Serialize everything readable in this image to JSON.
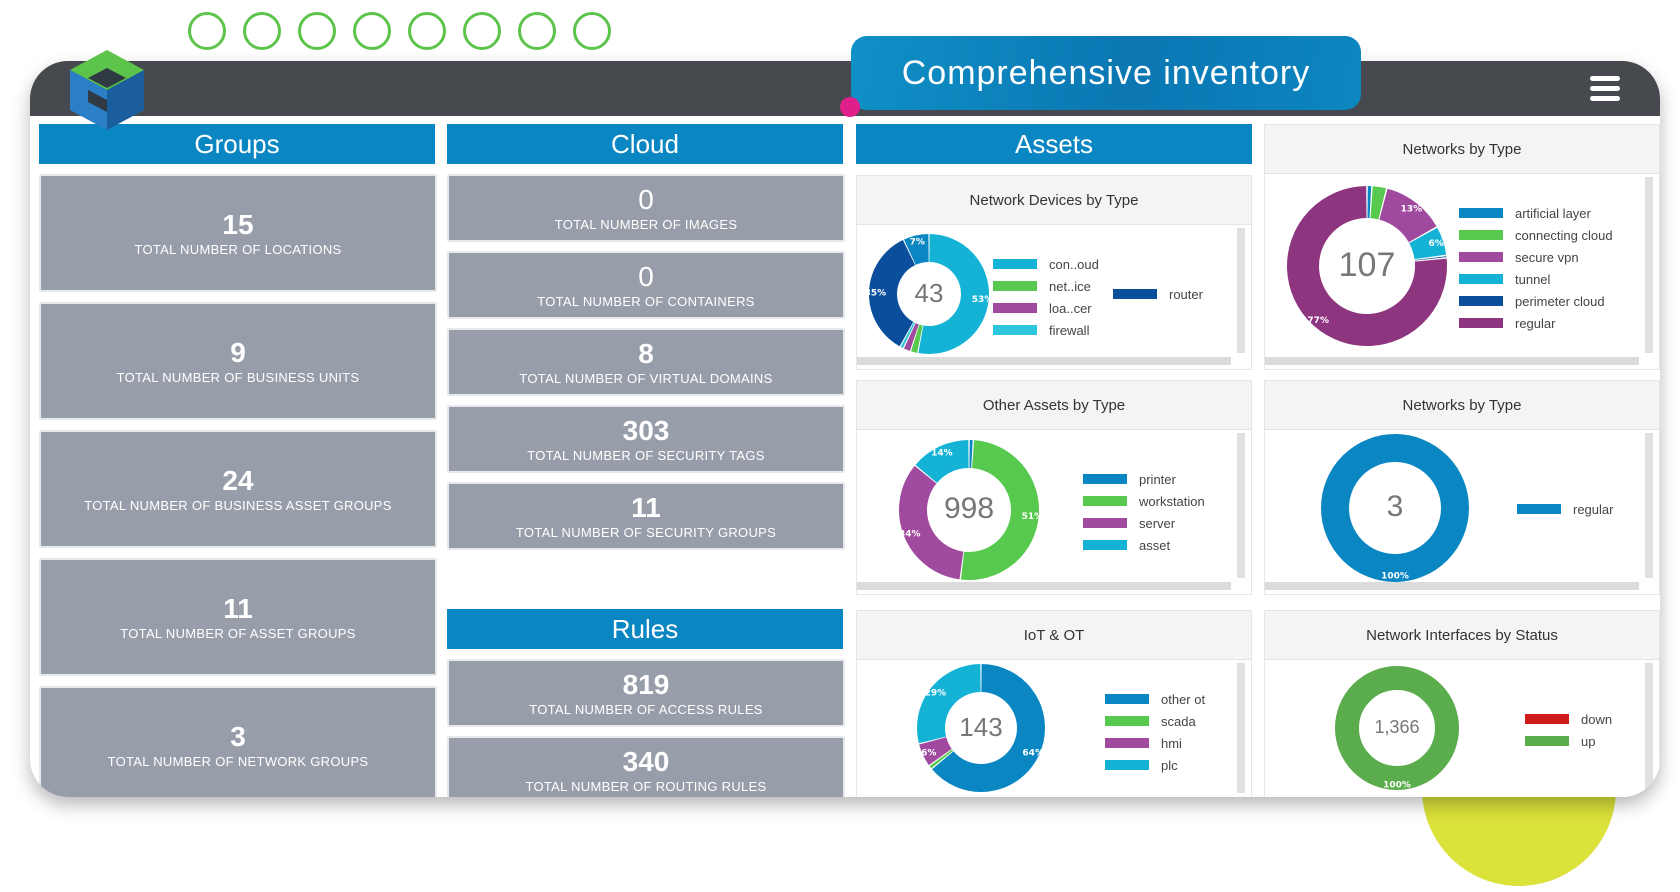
{
  "hero": {
    "title": "Comprehensive inventory"
  },
  "icons": {
    "menu": "hamburger-menu-icon",
    "logo": "cube-logo-icon"
  },
  "colors": {
    "header_blue": "#0a86c2",
    "tile_gray": "#989ea9",
    "topbar": "#464a4e",
    "accent_green": "#5cc44a",
    "accent_yellow": "#dbe23a",
    "accent_pink": "#e0208a"
  },
  "columns": {
    "groups": "Groups",
    "cloud": "Cloud",
    "assets": "Assets",
    "rules": "Rules"
  },
  "groups": [
    {
      "value": "15",
      "label": "TOTAL NUMBER OF LOCATIONS"
    },
    {
      "value": "9",
      "label": "TOTAL NUMBER OF BUSINESS UNITS"
    },
    {
      "value": "24",
      "label": "TOTAL NUMBER OF BUSINESS ASSET GROUPS"
    },
    {
      "value": "11",
      "label": "TOTAL NUMBER OF ASSET GROUPS"
    },
    {
      "value": "3",
      "label": "TOTAL NUMBER OF NETWORK GROUPS"
    }
  ],
  "cloud": [
    {
      "value": "0",
      "label": "TOTAL NUMBER OF IMAGES"
    },
    {
      "value": "0",
      "label": "TOTAL NUMBER OF CONTAINERS"
    },
    {
      "value": "8",
      "label": "TOTAL NUMBER OF VIRTUAL DOMAINS"
    },
    {
      "value": "303",
      "label": "TOTAL NUMBER OF SECURITY TAGS"
    },
    {
      "value": "11",
      "label": "TOTAL NUMBER OF SECURITY GROUPS"
    }
  ],
  "rules": [
    {
      "value": "819",
      "label": "TOTAL NUMBER OF ACCESS RULES"
    },
    {
      "value": "340",
      "label": "TOTAL NUMBER OF ROUTING RULES"
    }
  ],
  "charts": [
    {
      "title": "Network Devices by Type",
      "total": "43",
      "slices": [
        {
          "name": "con..oud",
          "value": 53,
          "color": "#14b3d6",
          "label": "53%"
        },
        {
          "name": "net..ice",
          "value": 2,
          "color": "#58c94f",
          "label": ""
        },
        {
          "name": "loa..cer",
          "value": 2,
          "color": "#a04a9f",
          "label": ""
        },
        {
          "name": "firewall",
          "value": 1,
          "color": "#2ec6dd",
          "label": ""
        },
        {
          "name": "router",
          "value": 35,
          "color": "#0b4f9c",
          "label": "35%"
        },
        {
          "name": "",
          "value": 7,
          "color": "#0a86c2",
          "label": "7%"
        }
      ],
      "legend": [
        "con..oud",
        "net..ice",
        "loa..cer",
        "firewall",
        "router"
      ]
    },
    {
      "title": "Networks by Type",
      "total": "107",
      "slices": [
        {
          "name": "artificial layer",
          "value": 1,
          "color": "#0a86c2",
          "label": ""
        },
        {
          "name": "connecting cloud",
          "value": 3,
          "color": "#58c94f",
          "label": ""
        },
        {
          "name": "secure vpn",
          "value": 13,
          "color": "#a04a9f",
          "label": "13%"
        },
        {
          "name": "tunnel",
          "value": 6,
          "color": "#14b3d6",
          "label": "6%"
        },
        {
          "name": "perimeter cloud",
          "value": 0.5,
          "color": "#0b4f9c",
          "label": ""
        },
        {
          "name": "regular",
          "value": 77,
          "color": "#8e3580",
          "label": "77%"
        }
      ],
      "legend": [
        "artificial layer",
        "connecting cloud",
        "secure vpn",
        "tunnel",
        "perimeter cloud",
        "regular"
      ]
    },
    {
      "title": "Other Assets by Type",
      "total": "998",
      "slices": [
        {
          "name": "printer",
          "value": 1,
          "color": "#0a86c2",
          "label": ""
        },
        {
          "name": "workstation",
          "value": 51,
          "color": "#58c94f",
          "label": "51%"
        },
        {
          "name": "server",
          "value": 34,
          "color": "#a04a9f",
          "label": "34%"
        },
        {
          "name": "asset",
          "value": 14,
          "color": "#14b3d6",
          "label": "14%"
        }
      ],
      "legend": [
        "printer",
        "workstation",
        "server",
        "asset"
      ]
    },
    {
      "title": "Networks by Type",
      "total": "3",
      "slices": [
        {
          "name": "regular",
          "value": 100,
          "color": "#0a86c2",
          "label": "100%"
        }
      ],
      "legend": [
        "regular"
      ]
    },
    {
      "title": "IoT & OT",
      "total": "143",
      "slices": [
        {
          "name": "other ot",
          "value": 64,
          "color": "#0a86c2",
          "label": "64%"
        },
        {
          "name": "scada",
          "value": 1,
          "color": "#58c94f",
          "label": ""
        },
        {
          "name": "hmi",
          "value": 6,
          "color": "#a04a9f",
          "label": "6%"
        },
        {
          "name": "plc",
          "value": 29,
          "color": "#14b3d6",
          "label": "29%"
        }
      ],
      "legend": [
        "other ot",
        "scada",
        "hmi",
        "plc"
      ]
    },
    {
      "title": "Network Interfaces by Status",
      "total": "1,366",
      "slices": [
        {
          "name": "down",
          "value": 0,
          "color": "#d11a1a",
          "label": ""
        },
        {
          "name": "up",
          "value": 100,
          "color": "#5aac4c",
          "label": "100%"
        }
      ],
      "legend": [
        "down",
        "up"
      ]
    }
  ]
}
